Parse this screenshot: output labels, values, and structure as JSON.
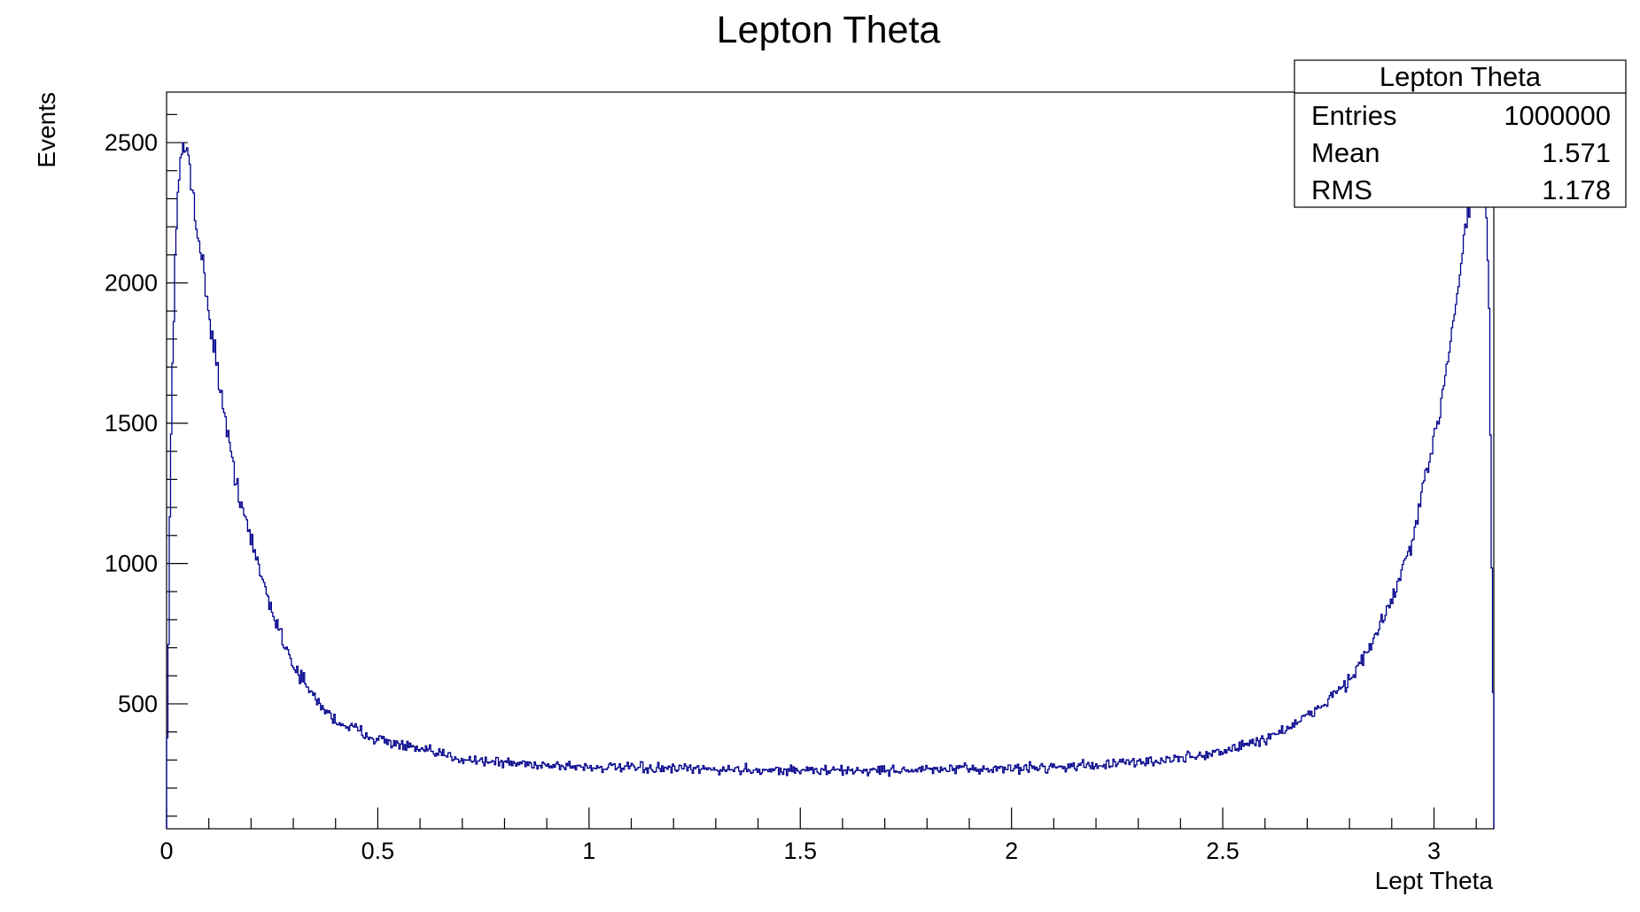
{
  "chart_data": {
    "type": "bar",
    "title": "Lepton Theta",
    "xlabel": "Lept Theta",
    "ylabel": "Events",
    "xlim": [
      0,
      3.1416
    ],
    "ylim": [
      55,
      2680
    ],
    "x_ticks": [
      "0",
      "0.5",
      "1",
      "1.5",
      "2",
      "2.5",
      "3"
    ],
    "y_ticks": [
      "500",
      "1000",
      "1500",
      "2000",
      "2500"
    ],
    "line_color": "#00008b",
    "grid": false,
    "legend": "none",
    "stats_box": {
      "title": "Lepton Theta",
      "position": "top-right",
      "rows": [
        {
          "label": "Entries",
          "value": "1000000"
        },
        {
          "label": "Mean",
          "value": "1.571"
        },
        {
          "label": "RMS",
          "value": "1.178"
        }
      ]
    },
    "series": [
      {
        "x": [
          0.0,
          0.01,
          0.02,
          0.03,
          0.04,
          0.05,
          0.06,
          0.08,
          0.1,
          0.12,
          0.15,
          0.18,
          0.2,
          0.25,
          0.3,
          0.35,
          0.4,
          0.5,
          0.6,
          0.7,
          0.8,
          1.0,
          1.2,
          1.4,
          1.57,
          1.8,
          2.0,
          2.2,
          2.3,
          2.4,
          2.5,
          2.6,
          2.7,
          2.8,
          2.85,
          2.9,
          2.95,
          3.0,
          3.03,
          3.06,
          3.08,
          3.1,
          3.11,
          3.12,
          3.13,
          3.14
        ],
        "values": [
          180,
          1400,
          2100,
          2380,
          2470,
          2480,
          2350,
          2120,
          1900,
          1700,
          1400,
          1200,
          1080,
          830,
          640,
          520,
          440,
          375,
          335,
          305,
          290,
          275,
          268,
          265,
          262,
          265,
          270,
          282,
          292,
          305,
          330,
          375,
          450,
          585,
          700,
          870,
          1080,
          1440,
          1700,
          2030,
          2250,
          2420,
          2480,
          2380,
          2000,
          550
        ]
      }
    ]
  }
}
